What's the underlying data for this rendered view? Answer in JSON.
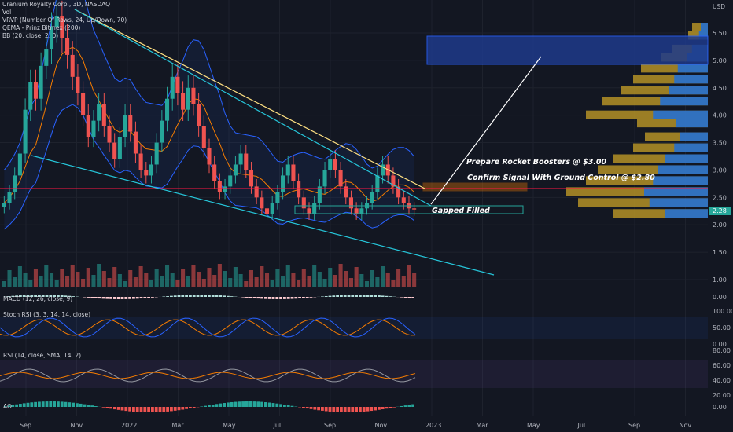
{
  "header": {
    "symbol_line": "Uranium Royalty Corp., 3D, NASDAQ",
    "vol_label": "Vol",
    "vrvp_label": "VRVP (Number Of Rows, 24, Up/Down, 70)",
    "qema_label": "QEMA - Prinz Bitmex (200)",
    "bb_label": "BB (20, close, 2, 0)"
  },
  "indicators": {
    "macd_label": "MACD (12, 26, close, 9)",
    "stoch_label": "Stoch RSI (3, 3, 14, 14, close)",
    "rsi_label": "RSI (14, close, SMA, 14, 2)",
    "ao_label": "AO"
  },
  "annotations": {
    "rocket": "Prepare Rocket Boosters @ $3.00",
    "confirm": "Confirm Signal With Ground Control @ $2.80",
    "gap": "Gapped Filled"
  },
  "colors": {
    "bg": "#131722",
    "up": "#26a69a",
    "down": "#ef5350",
    "grid": "#1e222d",
    "bb": "#2962ff",
    "qema": "#f57c00",
    "trend_cyan": "#26c6da",
    "trend_yellow": "#ffe082",
    "hline_red": "#ff1744",
    "current_price_bg": "#26a69a"
  },
  "chart_data": {
    "type": "candlestick",
    "currency": "USD",
    "last_price": "2.28",
    "y_ticks": [
      "5.50",
      "5.00",
      "4.50",
      "4.00",
      "3.50",
      "3.00",
      "2.50",
      "2.00",
      "1.50",
      "1.00",
      "0.00"
    ],
    "x_ticks": [
      "Sep",
      "Nov",
      "2022",
      "Mar",
      "May",
      "Jul",
      "Sep",
      "Nov",
      "2023",
      "Mar",
      "May",
      "Jul",
      "Sep",
      "Nov"
    ],
    "close_series": [
      2.4,
      2.6,
      2.9,
      3.3,
      4.1,
      4.6,
      4.3,
      4.9,
      5.2,
      5.6,
      5.8,
      5.4,
      5.1,
      4.7,
      4.4,
      4.0,
      3.6,
      3.9,
      4.2,
      3.8,
      3.5,
      3.2,
      3.6,
      4.0,
      3.7,
      3.3,
      3.0,
      2.9,
      3.1,
      3.5,
      3.9,
      4.3,
      4.7,
      4.4,
      4.1,
      4.5,
      4.2,
      3.8,
      3.4,
      3.1,
      2.8,
      2.6,
      2.7,
      2.9,
      3.1,
      3.3,
      3.0,
      2.7,
      2.5,
      2.3,
      2.2,
      2.4,
      2.6,
      2.9,
      3.1,
      2.8,
      2.5,
      2.3,
      2.2,
      2.4,
      2.7,
      3.0,
      3.2,
      3.0,
      2.7,
      2.5,
      2.3,
      2.2,
      2.3,
      2.4,
      2.6,
      2.9,
      3.1,
      2.9,
      2.7,
      2.5,
      2.4,
      2.3,
      2.28
    ],
    "stoch_ticks": [
      "100.00",
      "50.00",
      "0.00"
    ],
    "rsi_ticks": [
      "80.00",
      "60.00",
      "40.00",
      "20.00"
    ],
    "ao_ticks": [
      "0.00"
    ],
    "macd_ticks": [
      "0.00"
    ]
  }
}
